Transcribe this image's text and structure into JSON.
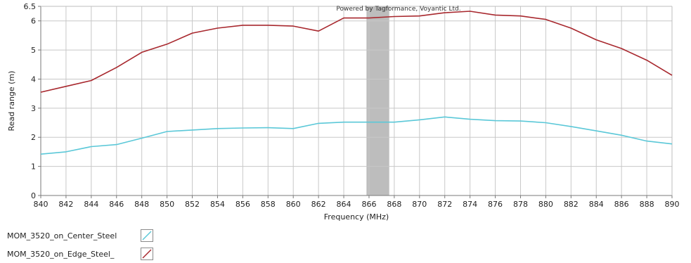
{
  "chart_data": {
    "type": "line",
    "title": "",
    "xlabel": "Frequency (MHz)",
    "ylabel": "Read range (m)",
    "xlim": [
      840,
      890
    ],
    "ylim": [
      0,
      6.5
    ],
    "x_ticks": [
      840,
      842,
      844,
      846,
      848,
      850,
      852,
      854,
      856,
      858,
      860,
      862,
      864,
      866,
      868,
      870,
      872,
      874,
      876,
      878,
      880,
      882,
      884,
      886,
      888,
      890
    ],
    "y_ticks": [
      0,
      1,
      2,
      3,
      4,
      5,
      6,
      6.5
    ],
    "grid": true,
    "credit": "Powered by Tagformance, Voyantic Ltd.",
    "highlight_band": {
      "x_start": 865.8,
      "x_end": 867.6,
      "color": "#bdbdbd"
    },
    "x": [
      840,
      842,
      844,
      846,
      848,
      850,
      852,
      854,
      856,
      858,
      860,
      862,
      864,
      866,
      868,
      870,
      872,
      874,
      876,
      878,
      880,
      882,
      884,
      886,
      888,
      890
    ],
    "series": [
      {
        "name": "MOM_3520_on_Center_Steel",
        "legend_label": "MOM_3520_on_Center_Steel",
        "color": "#5bc8d8",
        "values": [
          1.42,
          1.5,
          1.68,
          1.75,
          1.97,
          2.2,
          2.25,
          2.3,
          2.32,
          2.33,
          2.3,
          2.48,
          2.52,
          2.52,
          2.52,
          2.6,
          2.7,
          2.62,
          2.57,
          2.56,
          2.5,
          2.37,
          2.22,
          2.07,
          1.87,
          1.77
        ]
      },
      {
        "name": "MOM_3520_on_Edge_Steel_",
        "legend_label": "MOM_3520_on_Edge_Steel_",
        "color": "#a8282e",
        "values": [
          3.55,
          3.75,
          3.95,
          4.4,
          4.92,
          5.2,
          5.58,
          5.75,
          5.85,
          5.85,
          5.82,
          5.65,
          6.1,
          6.1,
          6.15,
          6.17,
          6.28,
          6.33,
          6.2,
          6.17,
          6.05,
          5.75,
          5.35,
          5.05,
          4.65,
          4.13
        ]
      }
    ]
  }
}
